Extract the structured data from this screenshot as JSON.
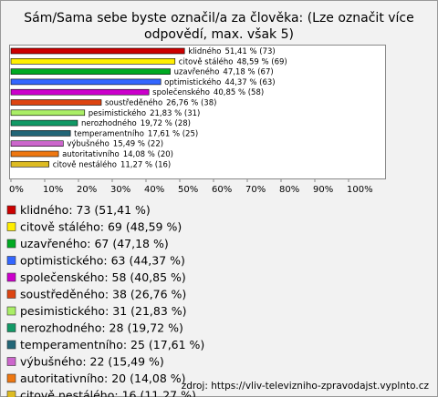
{
  "chart_data": {
    "type": "bar",
    "orientation": "horizontal",
    "title": [
      "Sám/Sama sebe byste označil/a za člověka: (Lze označit více",
      "odpovědí, max. však 5)"
    ],
    "categories": [
      "klidného",
      "citově stálého",
      "uzavřeného",
      "optimistického",
      "společenského",
      "soustředěného",
      "pesimistického",
      "nerozhodného",
      "temperamentního",
      "výbušného",
      "autoritativního",
      "citově nestálého"
    ],
    "values": [
      51.41,
      48.59,
      47.18,
      44.37,
      40.85,
      26.76,
      21.83,
      19.72,
      17.61,
      15.49,
      14.08,
      11.27
    ],
    "value_labels": [
      "51,41 % (73)",
      "48,59 % (69)",
      "47,18 % (67)",
      "44,37 % (63)",
      "40,85 % (58)",
      "26,76 % (38)",
      "21,83 % (31)",
      "19,72 % (28)",
      "17,61 % (25)",
      "15,49 % (22)",
      "14,08 % (20)",
      "11,27 % (16)"
    ],
    "legend_values": [
      ": 73 (51,41 %)",
      ": 69 (48,59 %)",
      ": 67 (47,18 %)",
      ": 63 (44,37 %)",
      ": 58 (40,85 %)",
      ": 38 (26,76 %)",
      ": 31 (21,83 %)",
      ": 28 (19,72 %)",
      ": 25 (17,61 %)",
      ": 22 (15,49 %)",
      ": 20 (14,08 %)",
      ": 16 (11,27 %)"
    ],
    "colors": [
      "#cc0000",
      "#ffee00",
      "#00aa22",
      "#3366ff",
      "#cc00cc",
      "#dd4411",
      "#aaee66",
      "#119966",
      "#226677",
      "#cc66cc",
      "#ee7711",
      "#ddbb22"
    ],
    "xlim": [
      0,
      110
    ],
    "xticks": [
      {
        "value": 0,
        "label": "0%"
      },
      {
        "value": 10,
        "label": "10%"
      },
      {
        "value": 20,
        "label": "20%"
      },
      {
        "value": 30,
        "label": "30%"
      },
      {
        "value": 40,
        "label": "40%"
      },
      {
        "value": 50,
        "label": "50%"
      },
      {
        "value": 60,
        "label": "60%"
      },
      {
        "value": 70,
        "label": "70%"
      },
      {
        "value": 80,
        "label": "80%"
      },
      {
        "value": 90,
        "label": "90%"
      },
      {
        "value": 100,
        "label": "100%"
      }
    ],
    "source": "zdroj: https://vliv-televizniho-zpravodajst.vyplnto.cz"
  }
}
